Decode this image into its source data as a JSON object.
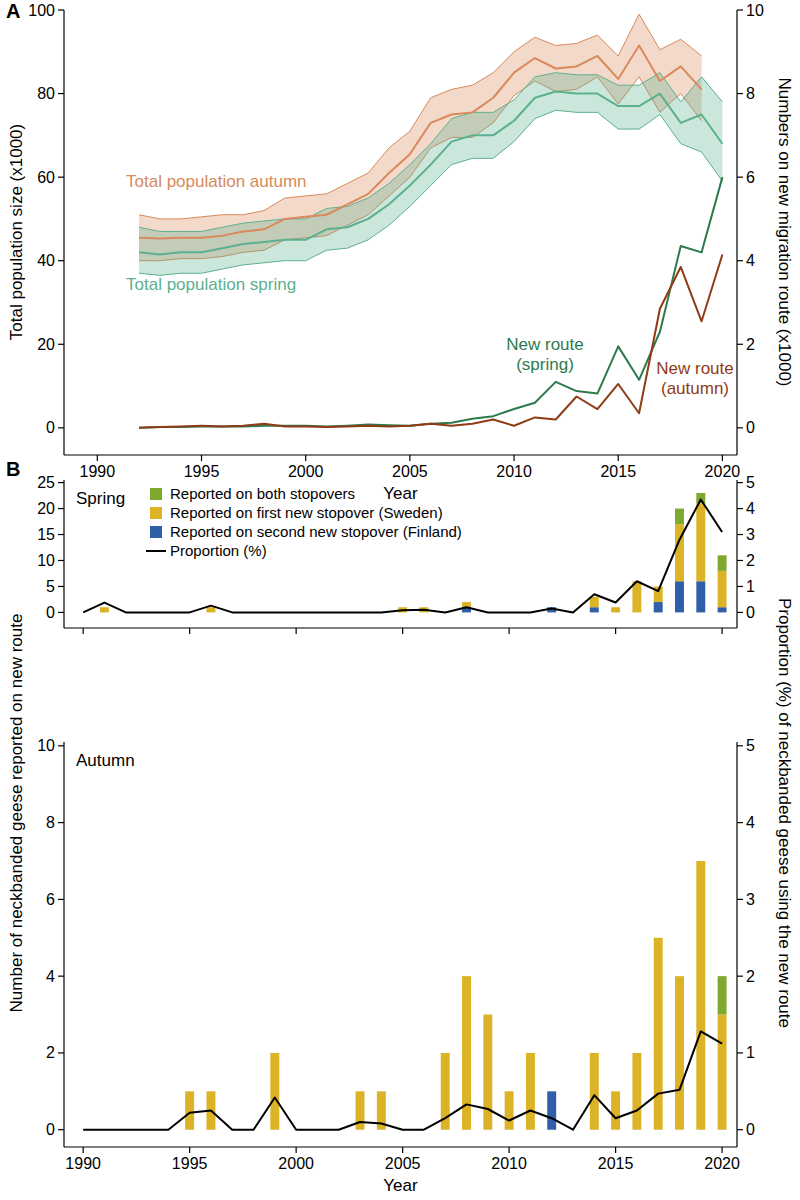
{
  "chart_data": [
    {
      "type": "line",
      "title": "A",
      "x_label": "Year",
      "y_label": "Total population size (x1000)",
      "y2_label": "Numbers on new migration route (x1000)",
      "x": [
        1992,
        1993,
        1994,
        1995,
        1996,
        1997,
        1998,
        1999,
        2000,
        2001,
        2002,
        2003,
        2004,
        2005,
        2006,
        2007,
        2008,
        2009,
        2010,
        2011,
        2012,
        2013,
        2014,
        2015,
        2016,
        2017,
        2018,
        2019,
        2020
      ],
      "xlim": [
        1988.4,
        2020.7
      ],
      "xticks": [
        1990,
        1995,
        2000,
        2005,
        2010,
        2015,
        2020
      ],
      "ylim": [
        -6.5,
        100
      ],
      "yticks": [
        0,
        20,
        40,
        60,
        80,
        100
      ],
      "y2lim": [
        -0.65,
        10
      ],
      "y2ticks": [
        0,
        2,
        4,
        6,
        8,
        10
      ],
      "grid": false,
      "series": [
        {
          "name": "Total population autumn",
          "color": "#d9895b",
          "values": [
            45.5,
            45.3,
            45.5,
            45.5,
            46,
            47,
            47.5,
            50,
            50.5,
            51,
            53.5,
            56,
            61,
            65.5,
            73,
            75,
            75.5,
            79,
            85,
            88.5,
            86,
            86.5,
            89,
            83.5,
            91.5,
            83,
            86.5,
            81,
            null
          ],
          "lower": [
            40,
            40,
            40.5,
            40.5,
            41,
            42,
            42.5,
            45,
            45.5,
            46,
            48.5,
            51,
            55.5,
            60,
            67,
            69.5,
            69.5,
            73,
            79.5,
            83,
            80.5,
            81,
            84,
            77.5,
            84,
            75.5,
            80,
            73.5,
            null
          ],
          "upper": [
            51,
            50,
            50,
            50.5,
            51,
            51,
            52,
            55,
            55.5,
            56,
            58.5,
            61,
            67,
            71,
            79,
            81,
            82,
            85,
            90,
            93.5,
            91.5,
            92,
            94,
            89,
            99,
            90.5,
            93,
            89,
            null
          ]
        },
        {
          "name": "Total population spring",
          "color": "#5cb08f",
          "values": [
            42,
            41.5,
            42,
            42,
            43,
            44,
            44.5,
            45,
            45,
            47.5,
            48,
            50,
            53.5,
            58,
            63,
            68.5,
            70,
            70,
            73.5,
            79,
            80.5,
            80,
            80,
            77,
            77,
            80,
            73,
            75,
            68
          ],
          "lower": [
            37,
            36.5,
            37,
            37,
            38,
            39,
            39.5,
            40,
            40,
            42.5,
            43,
            45,
            48.5,
            53,
            58,
            63,
            64.5,
            64.5,
            68.5,
            74,
            76,
            75.5,
            75.5,
            71.5,
            71.5,
            75,
            68,
            66,
            59
          ],
          "upper": [
            48,
            47,
            47,
            47,
            48,
            49,
            49.5,
            50,
            50,
            52.5,
            53,
            55,
            58.5,
            63,
            68,
            74,
            75.5,
            75.5,
            78.5,
            84,
            85,
            84.5,
            84.5,
            82,
            82,
            85,
            78,
            84,
            78
          ]
        },
        {
          "name": "New route (spring)",
          "color": "#2d7a4d",
          "axis": "y2",
          "values": [
            0,
            0.02,
            0.02,
            0.03,
            0.03,
            0.03,
            0.05,
            0.05,
            0.05,
            0.03,
            0.05,
            0.08,
            0.06,
            0.05,
            0.1,
            0.12,
            0.22,
            0.28,
            0.45,
            0.6,
            1.1,
            0.88,
            0.82,
            1.95,
            1.15,
            2.3,
            4.35,
            4.2,
            6
          ]
        },
        {
          "name": "New route (autumn)",
          "color": "#8e3b16",
          "axis": "y2",
          "values": [
            0,
            0.02,
            0.03,
            0.05,
            0.03,
            0.05,
            0.1,
            0.03,
            0.03,
            0.02,
            0.03,
            0.05,
            0.03,
            0.05,
            0.1,
            0.05,
            0.1,
            0.2,
            0.05,
            0.25,
            0.2,
            0.75,
            0.45,
            1.05,
            0.35,
            2.85,
            3.85,
            2.55,
            4.15
          ]
        }
      ]
    },
    {
      "type": "bar",
      "title": "B",
      "subtitle": "Spring",
      "stacked": true,
      "legend": "top",
      "tick_labels": "y",
      "y_label": "Number of neckbanded geese reported on new route",
      "y2_label": "Proportion (%) of neckbanded geese using the new route",
      "x": [
        1990,
        1991,
        1992,
        1993,
        1994,
        1995,
        1996,
        1997,
        1998,
        1999,
        2000,
        2001,
        2002,
        2003,
        2004,
        2005,
        2006,
        2007,
        2008,
        2009,
        2010,
        2011,
        2012,
        2013,
        2014,
        2015,
        2016,
        2017,
        2018,
        2019,
        2020
      ],
      "xlim": [
        1989.1,
        2020.7
      ],
      "xticks": [
        1990,
        1995,
        2000,
        2005,
        2010,
        2015,
        2020
      ],
      "ylim": [
        -3,
        25.5
      ],
      "yticks": [
        0,
        5,
        10,
        15,
        20,
        25
      ],
      "y2lim": [
        -0.6,
        5.1
      ],
      "y2ticks": [
        0,
        1,
        2,
        3,
        4,
        5
      ],
      "grid": false,
      "series": [
        {
          "name": "Reported on both stopovers",
          "color": "#7fa82e",
          "values": [
            0,
            0,
            0,
            0,
            0,
            0,
            0,
            0,
            0,
            0,
            0,
            0,
            0,
            0,
            0,
            0,
            0,
            0,
            0,
            0,
            0,
            0,
            0,
            0,
            0,
            0,
            0,
            0,
            3,
            2,
            3
          ]
        },
        {
          "name": "Reported on first new stopover (Sweden)",
          "color": "#dcb227",
          "values": [
            0,
            1,
            0,
            0,
            0,
            0,
            1,
            0,
            0,
            0,
            0,
            0,
            0,
            0,
            0,
            1,
            1,
            0,
            1,
            0,
            0,
            0,
            0,
            0,
            2,
            1,
            6,
            3,
            11,
            15,
            7
          ]
        },
        {
          "name": "Reported on second new stopover (Finland)",
          "color": "#2f5fa8",
          "values": [
            0,
            0,
            0,
            0,
            0,
            0,
            0,
            0,
            0,
            0,
            0,
            0,
            0,
            0,
            0,
            0,
            0,
            0,
            1,
            0,
            0,
            0,
            1,
            0,
            1,
            0,
            0,
            2,
            6,
            6,
            1
          ]
        },
        {
          "name": "Proportion (%)",
          "color": "#000000",
          "type": "line",
          "axis": "y2",
          "values": [
            0,
            0.38,
            0,
            0,
            0,
            0,
            0.26,
            0,
            0,
            0,
            0,
            0,
            0,
            0,
            0,
            0.08,
            0.1,
            0,
            0.2,
            0,
            0,
            0,
            0.15,
            0,
            0.7,
            0.38,
            1.2,
            0.82,
            2.8,
            4.35,
            3.1
          ]
        }
      ]
    },
    {
      "type": "bar",
      "subtitle": "Autumn",
      "stacked": true,
      "x_label": "Year",
      "x": [
        1990,
        1991,
        1992,
        1993,
        1994,
        1995,
        1996,
        1997,
        1998,
        1999,
        2000,
        2001,
        2002,
        2003,
        2004,
        2005,
        2006,
        2007,
        2008,
        2009,
        2010,
        2011,
        2012,
        2013,
        2014,
        2015,
        2016,
        2017,
        2018,
        2019,
        2020
      ],
      "xlim": [
        1989.1,
        2020.7
      ],
      "xticks": [
        1990,
        1995,
        2000,
        2005,
        2010,
        2015,
        2020
      ],
      "ylim": [
        -0.45,
        10.1
      ],
      "yticks": [
        0,
        2,
        4,
        6,
        8,
        10
      ],
      "y2lim": [
        -0.225,
        5.05
      ],
      "y2ticks": [
        0,
        1,
        2,
        3,
        4,
        5
      ],
      "grid": false,
      "series": [
        {
          "color": "#7fa82e",
          "values": [
            0,
            0,
            0,
            0,
            0,
            0,
            0,
            0,
            0,
            0,
            0,
            0,
            0,
            0,
            0,
            0,
            0,
            0,
            0,
            0,
            0,
            0,
            0,
            0,
            0,
            0,
            0,
            0,
            0,
            0,
            1
          ]
        },
        {
          "color": "#dcb227",
          "values": [
            0,
            0,
            0,
            0,
            0,
            1,
            1,
            0,
            0,
            2,
            0,
            0,
            0,
            1,
            1,
            0,
            0,
            2,
            4,
            3,
            1,
            2,
            0,
            0,
            2,
            1,
            2,
            5,
            4,
            7,
            3
          ]
        },
        {
          "color": "#2f5fa8",
          "values": [
            0,
            0,
            0,
            0,
            0,
            0,
            0,
            0,
            0,
            0,
            0,
            0,
            0,
            0,
            0,
            0,
            0,
            0,
            0,
            0,
            0,
            0,
            1,
            0,
            0,
            0,
            0,
            0,
            0,
            0,
            0
          ]
        },
        {
          "color": "#000000",
          "type": "line",
          "axis": "y2",
          "values": [
            0,
            0,
            0,
            0,
            0,
            0.22,
            0.25,
            0,
            0,
            0.42,
            0,
            0,
            0,
            0.1,
            0.08,
            0,
            0,
            0.15,
            0.33,
            0.27,
            0.12,
            0.25,
            0.15,
            0,
            0.45,
            0.15,
            0.25,
            0.47,
            0.52,
            1.28,
            1.12
          ]
        }
      ]
    }
  ]
}
